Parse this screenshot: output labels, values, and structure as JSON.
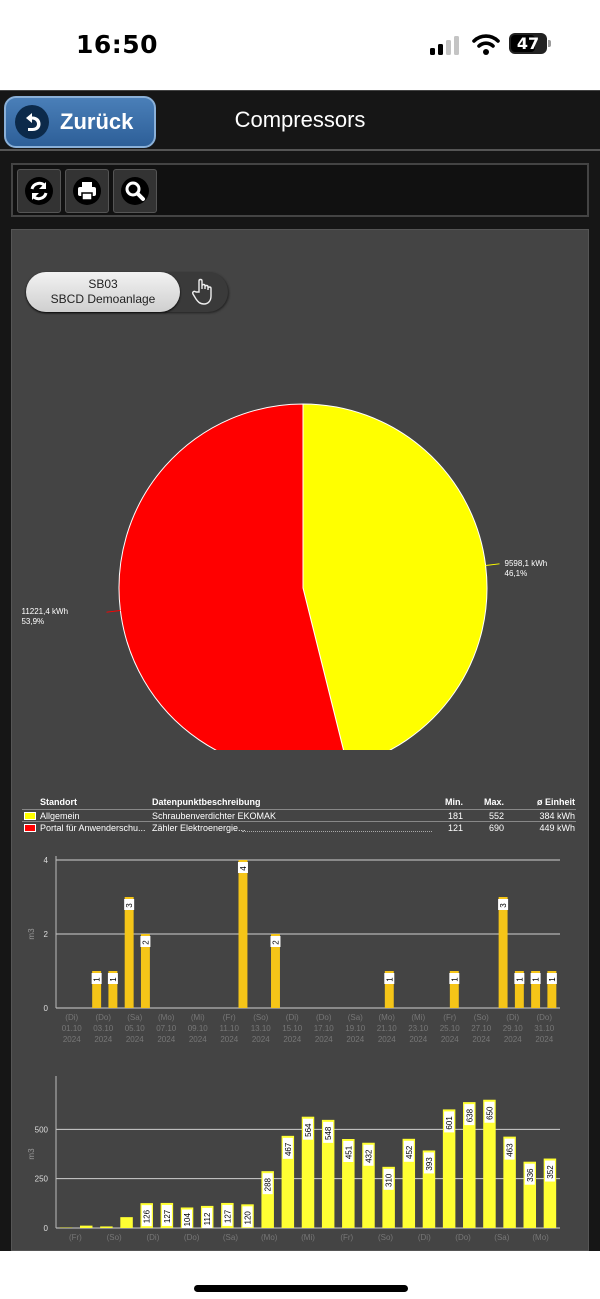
{
  "status_bar": {
    "time": "16:50",
    "battery": "47"
  },
  "header": {
    "back_label": "Zurück",
    "title": "Compressors"
  },
  "toolbar": {
    "buttons": [
      "refresh-icon",
      "print-icon",
      "search-icon"
    ]
  },
  "selector": {
    "line1": "SB03",
    "line2": "SBCD Demoanlage"
  },
  "colors": {
    "yellow": "#ffff00",
    "red": "#ff0000",
    "bar_yellow": "#f5c518",
    "bar_yellow2": "#ffff33"
  },
  "chart_data": [
    {
      "type": "pie",
      "slices": [
        {
          "label": "Allgemein",
          "value": 9598.1,
          "value_text": "9598,1 kWh",
          "percent_text": "46,1%",
          "color": "#ffff00"
        },
        {
          "label": "Portal für Anwenderschu...",
          "value": 11221.4,
          "value_text": "11221,4 kWh",
          "percent_text": "53,9%",
          "color": "#ff0000"
        }
      ]
    },
    {
      "type": "bar",
      "ylabel": "m3",
      "ylim": [
        0,
        4
      ],
      "yticks": [
        "0",
        "2",
        "4"
      ],
      "values": [
        0,
        0,
        1,
        1,
        3,
        2,
        0,
        0,
        0,
        0,
        0,
        4,
        0,
        2,
        0,
        0,
        0,
        0,
        0,
        0,
        1,
        0,
        0,
        0,
        1,
        0,
        0,
        3,
        1,
        1,
        1
      ],
      "value_labels": [
        "",
        "",
        "1",
        "1",
        "3",
        "2",
        "",
        "",
        "",
        "",
        "",
        "4",
        "",
        "2",
        "",
        "",
        "",
        "",
        "",
        "",
        "1",
        "",
        "",
        "",
        "1",
        "",
        "",
        "3",
        "1",
        "1",
        "1"
      ],
      "x_labels": [
        [
          "(Di)",
          "01.10",
          "2024"
        ],
        [
          "(Do)",
          "03.10",
          "2024"
        ],
        [
          "(Sa)",
          "05.10",
          "2024"
        ],
        [
          "(Mo)",
          "07.10",
          "2024"
        ],
        [
          "(Mi)",
          "09.10",
          "2024"
        ],
        [
          "(Fr)",
          "11.10",
          "2024"
        ],
        [
          "(So)",
          "13.10",
          "2024"
        ],
        [
          "(Di)",
          "15.10",
          "2024"
        ],
        [
          "(Do)",
          "17.10",
          "2024"
        ],
        [
          "(Sa)",
          "19.10",
          "2024"
        ],
        [
          "(Mo)",
          "21.10",
          "2024"
        ],
        [
          "(Mi)",
          "23.10",
          "2024"
        ],
        [
          "(Fr)",
          "25.10",
          "2024"
        ],
        [
          "(So)",
          "27.10",
          "2024"
        ],
        [
          "(Di)",
          "29.10",
          "2024"
        ],
        [
          "(Do)",
          "31.10",
          "2024"
        ]
      ]
    },
    {
      "type": "bar",
      "ylabel": "m3",
      "ylim": [
        0,
        750
      ],
      "yticks": [
        "0",
        "250",
        "500"
      ],
      "values": [
        2,
        12,
        8,
        55,
        126,
        127,
        104,
        112,
        127,
        120,
        288,
        467,
        564,
        548,
        451,
        432,
        310,
        452,
        393,
        601,
        638,
        650,
        463,
        336,
        352
      ],
      "value_labels": [
        "",
        "",
        "",
        "",
        "126",
        "127",
        "104",
        "112",
        "127",
        "120",
        "288",
        "467",
        "564",
        "548",
        "451",
        "432",
        "310",
        "452",
        "393",
        "601",
        "638",
        "650",
        "463",
        "336",
        "352"
      ],
      "x_labels": [
        "(Fr)",
        "(So)",
        "(Di)",
        "(Do)",
        "(Sa)",
        "(Mo)",
        "(Mi)",
        "(Fr)",
        "(So)",
        "(Di)",
        "(Do)",
        "(Sa)",
        "(Mo)"
      ]
    }
  ],
  "legend": {
    "headers": {
      "location": "Standort",
      "description": "Datenpunktbeschreibung",
      "min": "Min.",
      "max": "Max.",
      "unit": "ø Einheit"
    },
    "rows": [
      {
        "location": "Allgemein",
        "description": "Schraubenverdichter EKOMAK",
        "min": "181",
        "max": "552",
        "avg": "384 kWh",
        "color": "#ffff00"
      },
      {
        "location": "Portal für Anwenderschu...",
        "description": "Zähler Elektroenergie...",
        "min": "121",
        "max": "690",
        "avg": "449 kWh",
        "color": "#ff0000"
      }
    ]
  }
}
